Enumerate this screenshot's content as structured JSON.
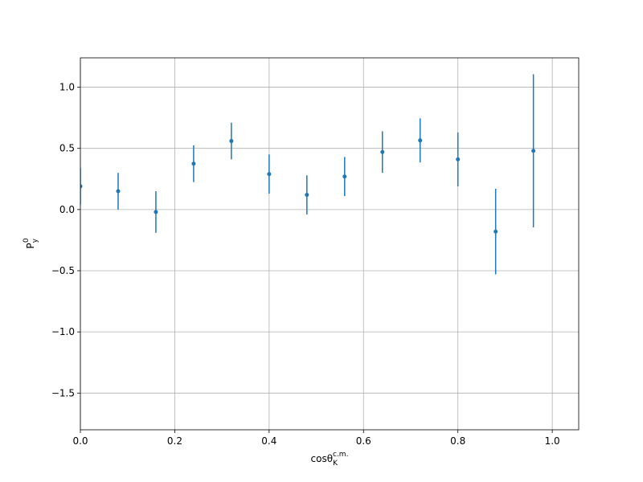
{
  "chart_data": {
    "type": "errorbar",
    "xlabel": {
      "text": "cosθ",
      "sub": "K",
      "sup": "c.m."
    },
    "ylabel": {
      "text": "P",
      "sub": "y",
      "sup": "0"
    },
    "color": "#1f77b4",
    "grid": true,
    "xlim": [
      0,
      1.056
    ],
    "ylim": [
      -1.8,
      1.24
    ],
    "xticks": [
      {
        "value": 0,
        "label": "0.0"
      },
      0.2,
      0.4,
      0.6,
      0.8,
      {
        "value": 1,
        "label": "1.0"
      }
    ],
    "yticks": [
      {
        "value": -1.5,
        "label": "−1.5"
      },
      {
        "value": -1,
        "label": "−1.0"
      },
      {
        "value": -0.5,
        "label": "−0.5"
      },
      {
        "value": 0,
        "label": "0.0"
      },
      0.5,
      {
        "value": 1,
        "label": "1.0"
      }
    ],
    "x": [
      0,
      0.08,
      0.16,
      0.24,
      0.32,
      0.4,
      0.48,
      0.56,
      0.64,
      0.72,
      0.8,
      0.88,
      0.96
    ],
    "values": [
      0.19,
      0.15,
      -0.02,
      0.375,
      0.56,
      0.29,
      0.12,
      0.27,
      0.47,
      0.565,
      0.41,
      -0.18,
      0.48
    ],
    "errors": [
      0.15,
      0.15,
      0.17,
      0.15,
      0.15,
      0.16,
      0.16,
      0.16,
      0.17,
      0.18,
      0.22,
      0.35,
      0.625
    ]
  }
}
